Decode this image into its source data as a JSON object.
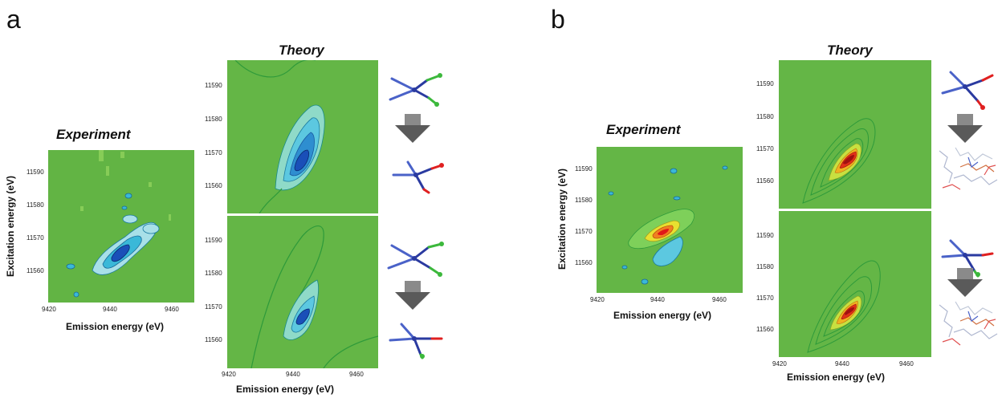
{
  "panels": {
    "a": {
      "letter": "a",
      "experiment_title": "Experiment",
      "theory_title": "Theory",
      "xlabel": "Emission energy (eV)",
      "ylabel": "Excitation energy (eV)"
    },
    "b": {
      "letter": "b",
      "experiment_title": "Experiment",
      "theory_title": "Theory",
      "xlabel": "Emission energy (eV)",
      "ylabel": "Excitation energy (eV)"
    }
  },
  "colors": {
    "background_green": "#64b646",
    "low_blue": "#1a4fb8",
    "mid_cyan": "#3ab8d8",
    "high_red": "#e01818",
    "arrow_gray": "#6b6b6b"
  },
  "chart_data": [
    {
      "type": "heatmap",
      "title": "Experiment",
      "xlabel": "Emission energy (eV)",
      "ylabel": "Excitation energy (eV)",
      "x_ticks": [
        "9420",
        "9440",
        "9460"
      ],
      "y_ticks": [
        "11560",
        "11570",
        "11580",
        "11590"
      ],
      "xlim": [
        9415,
        9465
      ],
      "ylim": [
        11553,
        11597
      ],
      "features": [
        {
          "x": 9443,
          "y": 11567,
          "color": "blue"
        }
      ]
    },
    {
      "type": "heatmap",
      "title": "Theory",
      "xlabel": "",
      "ylabel": "",
      "y_ticks": [
        "11560",
        "11570",
        "11580",
        "11590"
      ],
      "xlim": [
        9415,
        9465
      ],
      "ylim": [
        11553,
        11597
      ],
      "features": [
        {
          "x": 9442,
          "y": 11568,
          "color": "blue"
        }
      ]
    },
    {
      "type": "heatmap",
      "title": "",
      "xlabel": "Emission energy (eV)",
      "ylabel": "",
      "x_ticks": [
        "9420",
        "9440",
        "9460"
      ],
      "y_ticks": [
        "11560",
        "11570",
        "11580",
        "11590"
      ],
      "xlim": [
        9415,
        9465
      ],
      "ylim": [
        11553,
        11597
      ],
      "features": [
        {
          "x": 9442,
          "y": 11567,
          "color": "blue"
        }
      ]
    },
    {
      "type": "heatmap",
      "title": "Experiment",
      "xlabel": "Emission energy (eV)",
      "ylabel": "Excitation energy (eV)",
      "x_ticks": [
        "9420",
        "9440",
        "9460"
      ],
      "y_ticks": [
        "11560",
        "11570",
        "11580",
        "11590"
      ],
      "xlim": [
        9415,
        9465
      ],
      "ylim": [
        11553,
        11597
      ],
      "features": [
        {
          "x": 9443,
          "y": 11567,
          "color": "red"
        }
      ]
    },
    {
      "type": "heatmap",
      "title": "Theory",
      "xlabel": "",
      "ylabel": "",
      "y_ticks": [
        "11560",
        "11570",
        "11580",
        "11590"
      ],
      "xlim": [
        9415,
        9465
      ],
      "ylim": [
        11553,
        11597
      ],
      "features": [
        {
          "x": 9442,
          "y": 11568,
          "color": "red"
        }
      ]
    },
    {
      "type": "heatmap",
      "title": "",
      "xlabel": "Emission energy (eV)",
      "ylabel": "",
      "x_ticks": [
        "9420",
        "9440",
        "9460"
      ],
      "y_ticks": [
        "11560",
        "11570",
        "11580",
        "11590"
      ],
      "xlim": [
        9415,
        9465
      ],
      "ylim": [
        11553,
        11597
      ],
      "features": [
        {
          "x": 9442,
          "y": 11567,
          "color": "red"
        }
      ]
    }
  ]
}
